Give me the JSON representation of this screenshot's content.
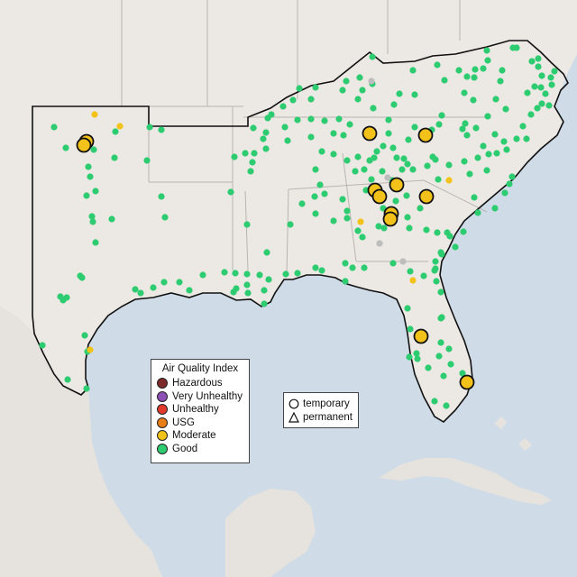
{
  "legend": {
    "title": "Air Quality Index",
    "categories": [
      {
        "label": "Hazardous",
        "color": "#7e2a2a"
      },
      {
        "label": "Very Unhealthy",
        "color": "#8e4fb5"
      },
      {
        "label": "Unhealthy",
        "color": "#e23b2e"
      },
      {
        "label": "USG",
        "color": "#e97d16"
      },
      {
        "label": "Moderate",
        "color": "#f3c21a"
      },
      {
        "label": "Good",
        "color": "#2ecc71"
      }
    ]
  },
  "shape_legend": {
    "temporary": "temporary",
    "permanent": "permanent"
  },
  "colors": {
    "water": "#cfdce8",
    "land": "#ece9e5",
    "state_border": "#b9b4b0",
    "region_outline": "#111111",
    "no_data": "#bdbdbd"
  },
  "monitors": {
    "moderate_temporary": [
      [
        96,
        157
      ],
      [
        93,
        161
      ],
      [
        410,
        148
      ],
      [
        472,
        150
      ],
      [
        416,
        211
      ],
      [
        421,
        218
      ],
      [
        440,
        205
      ],
      [
        473,
        218
      ],
      [
        434,
        237
      ],
      [
        433,
        243
      ],
      [
        467,
        373
      ],
      [
        518,
        424
      ]
    ],
    "moderate_small": [
      [
        105,
        127
      ],
      [
        133,
        140
      ],
      [
        400,
        246
      ],
      [
        498,
        200
      ],
      [
        458,
        311
      ],
      [
        100,
        388
      ]
    ],
    "no_data": [
      [
        412,
        90
      ],
      [
        430,
        197
      ],
      [
        421,
        270
      ],
      [
        447,
        290
      ]
    ],
    "good": [
      [
        60,
        141
      ],
      [
        128,
        146
      ],
      [
        166,
        141
      ],
      [
        179,
        144
      ],
      [
        104,
        166
      ],
      [
        73,
        164
      ],
      [
        98,
        185
      ],
      [
        163,
        178
      ],
      [
        127,
        175
      ],
      [
        100,
        196
      ],
      [
        106,
        212
      ],
      [
        96,
        217
      ],
      [
        102,
        240
      ],
      [
        103,
        246
      ],
      [
        124,
        243
      ],
      [
        183,
        241
      ],
      [
        179,
        218
      ],
      [
        106,
        269
      ],
      [
        89,
        306
      ],
      [
        91,
        308
      ],
      [
        67,
        329
      ],
      [
        70,
        333
      ],
      [
        74,
        330
      ],
      [
        150,
        321
      ],
      [
        156,
        325
      ],
      [
        170,
        319
      ],
      [
        182,
        313
      ],
      [
        199,
        313
      ],
      [
        47,
        383
      ],
      [
        75,
        421
      ],
      [
        96,
        431
      ],
      [
        94,
        372
      ],
      [
        97,
        390
      ],
      [
        210,
        322
      ],
      [
        225,
        305
      ],
      [
        249,
        302
      ],
      [
        261,
        303
      ],
      [
        262,
        320
      ],
      [
        274,
        304
      ],
      [
        274,
        316
      ],
      [
        288,
        305
      ],
      [
        293,
        322
      ],
      [
        293,
        337
      ],
      [
        275,
        325
      ],
      [
        259,
        324
      ],
      [
        296,
        280
      ],
      [
        298,
        310
      ],
      [
        317,
        304
      ],
      [
        330,
        303
      ],
      [
        350,
        297
      ],
      [
        357,
        300
      ],
      [
        383,
        292
      ],
      [
        391,
        297
      ],
      [
        383,
        312
      ],
      [
        404,
        297
      ],
      [
        436,
        292
      ],
      [
        455,
        301
      ],
      [
        470,
        306
      ],
      [
        482,
        300
      ],
      [
        484,
        312
      ],
      [
        489,
        324
      ],
      [
        489,
        353
      ],
      [
        483,
        298
      ],
      [
        452,
        342
      ],
      [
        455,
        365
      ],
      [
        462,
        392
      ],
      [
        463,
        398
      ],
      [
        454,
        396
      ],
      [
        487,
        395
      ],
      [
        500,
        404
      ],
      [
        513,
        414
      ],
      [
        489,
        380
      ],
      [
        475,
        408
      ],
      [
        490,
        352
      ],
      [
        498,
        387
      ],
      [
        492,
        417
      ],
      [
        495,
        450
      ],
      [
        482,
        445
      ],
      [
        483,
        290
      ],
      [
        485,
        258
      ],
      [
        496,
        258
      ],
      [
        489,
        280
      ],
      [
        490,
        282
      ],
      [
        473,
        255
      ],
      [
        454,
        253
      ],
      [
        426,
        253
      ],
      [
        420,
        251
      ],
      [
        397,
        256
      ],
      [
        402,
        263
      ],
      [
        385,
        242
      ],
      [
        385,
        234
      ],
      [
        380,
        221
      ],
      [
        370,
        245
      ],
      [
        350,
        237
      ],
      [
        322,
        249
      ],
      [
        274,
        249
      ],
      [
        256,
        213
      ],
      [
        260,
        174
      ],
      [
        272,
        170
      ],
      [
        282,
        170
      ],
      [
        280,
        180
      ],
      [
        278,
        190
      ],
      [
        295,
        165
      ],
      [
        295,
        147
      ],
      [
        297,
        131
      ],
      [
        301,
        127
      ],
      [
        314,
        118
      ],
      [
        330,
        133
      ],
      [
        345,
        132
      ],
      [
        345,
        152
      ],
      [
        360,
        134
      ],
      [
        376,
        132
      ],
      [
        370,
        148
      ],
      [
        370,
        171
      ],
      [
        357,
        168
      ],
      [
        350,
        188
      ],
      [
        355,
        205
      ],
      [
        349,
        218
      ],
      [
        335,
        226
      ],
      [
        360,
        215
      ],
      [
        381,
        150
      ],
      [
        385,
        178
      ],
      [
        397,
        174
      ],
      [
        394,
        190
      ],
      [
        404,
        188
      ],
      [
        410,
        178
      ],
      [
        415,
        175
      ],
      [
        418,
        168
      ],
      [
        425,
        162
      ],
      [
        431,
        148
      ],
      [
        440,
        175
      ],
      [
        424,
        190
      ],
      [
        435,
        200
      ],
      [
        446,
        188
      ],
      [
        448,
        176
      ],
      [
        436,
        164
      ],
      [
        453,
        155
      ],
      [
        460,
        141
      ],
      [
        452,
        182
      ],
      [
        458,
        188
      ],
      [
        474,
        184
      ],
      [
        480,
        174
      ],
      [
        483,
        177
      ],
      [
        486,
        199
      ],
      [
        498,
        183
      ],
      [
        515,
        179
      ],
      [
        521,
        193
      ],
      [
        540,
        189
      ],
      [
        551,
        170
      ],
      [
        542,
        171
      ],
      [
        536,
        162
      ],
      [
        530,
        175
      ],
      [
        518,
        150
      ],
      [
        513,
        143
      ],
      [
        516,
        137
      ],
      [
        528,
        142
      ],
      [
        549,
        149
      ],
      [
        559,
        157
      ],
      [
        562,
        166
      ],
      [
        573,
        154
      ],
      [
        584,
        154
      ],
      [
        580,
        140
      ],
      [
        589,
        127
      ],
      [
        596,
        120
      ],
      [
        601,
        115
      ],
      [
        609,
        117
      ],
      [
        605,
        104
      ],
      [
        611,
        86
      ],
      [
        597,
        74
      ],
      [
        597,
        65
      ],
      [
        590,
        68
      ],
      [
        569,
        53
      ],
      [
        541,
        67
      ],
      [
        536,
        76
      ],
      [
        527,
        77
      ],
      [
        526,
        86
      ],
      [
        515,
        103
      ],
      [
        525,
        111
      ],
      [
        550,
        110
      ],
      [
        555,
        90
      ],
      [
        557,
        78
      ],
      [
        585,
        103
      ],
      [
        593,
        96
      ],
      [
        601,
        84
      ],
      [
        615,
        79
      ],
      [
        600,
        97
      ],
      [
        612,
        94
      ],
      [
        561,
        121
      ],
      [
        541,
        129
      ],
      [
        490,
        128
      ],
      [
        487,
        138
      ],
      [
        479,
        144
      ],
      [
        460,
        105
      ],
      [
        443,
        104
      ],
      [
        437,
        116
      ],
      [
        431,
        133
      ],
      [
        413,
        93
      ],
      [
        399,
        86
      ],
      [
        384,
        90
      ],
      [
        380,
        100
      ],
      [
        350,
        97
      ],
      [
        345,
        110
      ],
      [
        332,
        98
      ],
      [
        325,
        111
      ],
      [
        316,
        141
      ],
      [
        319,
        156
      ],
      [
        292,
        154
      ],
      [
        281,
        142
      ],
      [
        413,
        63
      ],
      [
        458,
        78
      ],
      [
        485,
        72
      ],
      [
        493,
        89
      ],
      [
        509,
        78
      ],
      [
        518,
        85
      ],
      [
        540,
        56
      ],
      [
        573,
        53
      ],
      [
        388,
        138
      ],
      [
        414,
        120
      ],
      [
        397,
        110
      ],
      [
        402,
        100
      ],
      [
        451,
        217
      ],
      [
        466,
        231
      ],
      [
        549,
        231
      ],
      [
        560,
        214
      ],
      [
        565,
        204
      ],
      [
        568,
        196
      ],
      [
        526,
        219
      ],
      [
        530,
        236
      ],
      [
        514,
        257
      ],
      [
        505,
        274
      ],
      [
        499,
        262
      ],
      [
        452,
        241
      ],
      [
        439,
        223
      ],
      [
        425,
        231
      ],
      [
        406,
        211
      ],
      [
        412,
        199
      ]
    ]
  }
}
